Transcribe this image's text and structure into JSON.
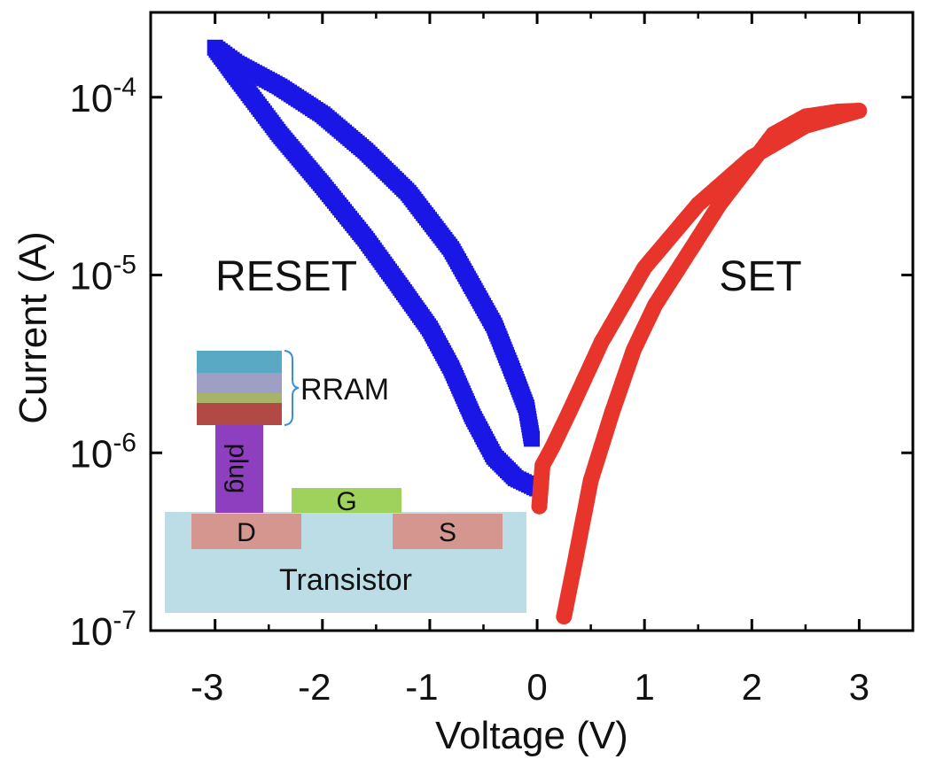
{
  "chart_data": {
    "type": "scatter",
    "title": "",
    "xlabel": "Voltage (V)",
    "ylabel": "Current (A)",
    "xlim": [
      -3.6,
      3.5
    ],
    "ylim": [
      1e-07,
      0.0003
    ],
    "y_scale": "log",
    "x_ticks": [
      -3,
      -2,
      -1,
      0,
      1,
      2,
      3
    ],
    "x_tick_labels": [
      "-3",
      "-2",
      "-1",
      "0",
      "1",
      "2",
      "3"
    ],
    "y_ticks": [
      1e-07,
      1e-06,
      1e-05,
      0.0001
    ],
    "y_tick_labels": [
      {
        "base": "10",
        "exp": "-7"
      },
      {
        "base": "10",
        "exp": "-6"
      },
      {
        "base": "10",
        "exp": "-5"
      },
      {
        "base": "10",
        "exp": "-4"
      }
    ],
    "series": [
      {
        "marker": "square",
        "color": "#1a17e6",
        "x": [
          0.0,
          -0.2,
          -0.4,
          -0.6,
          -0.8,
          -1.0,
          -1.3,
          -1.6,
          -2.0,
          -2.4,
          -2.8,
          -3.0,
          -2.8,
          -2.4,
          -2.0,
          -1.6,
          -1.2,
          -0.8,
          -0.4,
          -0.2,
          -0.1,
          -0.05
        ],
        "y": [
          6.3e-07,
          7.2e-07,
          9.5e-07,
          1.6e-06,
          3e-06,
          5e-06,
          9e-06,
          1.6e-05,
          3.2e-05,
          6.2e-05,
          0.00013,
          0.00019,
          0.000155,
          0.000115,
          8e-05,
          5e-05,
          2.9e-05,
          1.4e-05,
          5.2e-06,
          2.6e-06,
          1.8e-06,
          1.2e-06
        ]
      },
      {
        "marker": "circle",
        "color": "#e8352b",
        "x": [
          0.25,
          0.35,
          0.5,
          0.7,
          0.9,
          1.1,
          1.4,
          1.7,
          2.0,
          2.2,
          2.5,
          2.8,
          3.0,
          2.5,
          2.0,
          1.5,
          1.0,
          0.6,
          0.3,
          0.15,
          0.05,
          0.02
        ],
        "y": [
          1.2e-07,
          2.4e-07,
          7e-07,
          1.7e-06,
          3.8e-06,
          6.8e-06,
          1.3e-05,
          2.5e-05,
          4.3e-05,
          6.2e-05,
          7.8e-05,
          8.3e-05,
          8.4e-05,
          6.9e-05,
          4.6e-05,
          2.5e-05,
          1.1e-05,
          4.2e-06,
          1.7e-06,
          1.1e-06,
          8.5e-07,
          5e-07
        ]
      }
    ],
    "annotations": [
      "RESET",
      "SET"
    ],
    "grid": false,
    "legend": "none"
  },
  "inset": {
    "rram_label": "RRAM",
    "plug_label": "plug",
    "gate_label": "G",
    "drain_label": "D",
    "source_label": "S",
    "transistor_label": "Transistor",
    "colors": {
      "substrate": "#bcdce6",
      "drain_source": "#d4968e",
      "gate": "#9ed25c",
      "plug": "#8d3fbf",
      "rram_layers": [
        "#5aa9c4",
        "#9d9fc5",
        "#a8b36a",
        "#b14a44"
      ],
      "bracket": "#3b8fd6"
    }
  }
}
